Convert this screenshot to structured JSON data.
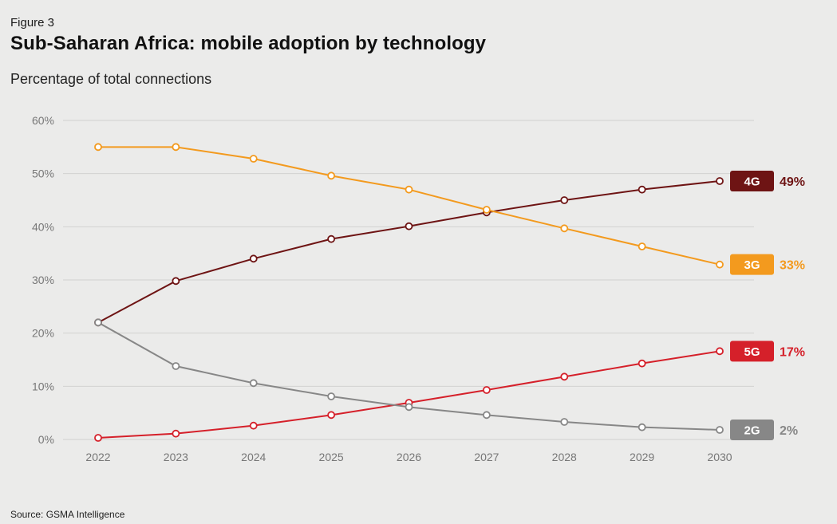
{
  "figure_label": "Figure 3",
  "title": "Sub-Saharan Africa: mobile adoption by technology",
  "subtitle": "Percentage of total connections",
  "source": "Source: GSMA Intelligence",
  "chart_data": {
    "type": "line",
    "x": [
      2022,
      2023,
      2024,
      2025,
      2026,
      2027,
      2028,
      2029,
      2030
    ],
    "x_tick_labels": [
      "2022",
      "2023",
      "2024",
      "2025",
      "2026",
      "2027",
      "2028",
      "2029",
      "2030"
    ],
    "y_tick_labels": [
      "0%",
      "10%",
      "20%",
      "30%",
      "40%",
      "50%",
      "60%"
    ],
    "y_ticks": [
      0,
      10,
      20,
      30,
      40,
      50,
      60
    ],
    "ylim": [
      0,
      60
    ],
    "grid": true,
    "legend": "end-of-line labels",
    "series": [
      {
        "name": "4G",
        "end_label": "49%",
        "color": "#6e1414",
        "values": [
          22,
          29.8,
          34,
          37.7,
          40.1,
          42.7,
          45,
          47,
          48.6
        ]
      },
      {
        "name": "3G",
        "end_label": "33%",
        "color": "#f39a1e",
        "values": [
          55,
          55,
          52.8,
          49.6,
          47,
          43.2,
          39.7,
          36.3,
          32.9
        ]
      },
      {
        "name": "5G",
        "end_label": "17%",
        "color": "#d5202a",
        "values": [
          0.3,
          1.1,
          2.6,
          4.6,
          6.9,
          9.3,
          11.8,
          14.3,
          16.6
        ]
      },
      {
        "name": "2G",
        "end_label": "2%",
        "color": "#878787",
        "values": [
          22,
          13.8,
          10.6,
          8.1,
          6.1,
          4.6,
          3.3,
          2.3,
          1.8
        ]
      }
    ]
  }
}
